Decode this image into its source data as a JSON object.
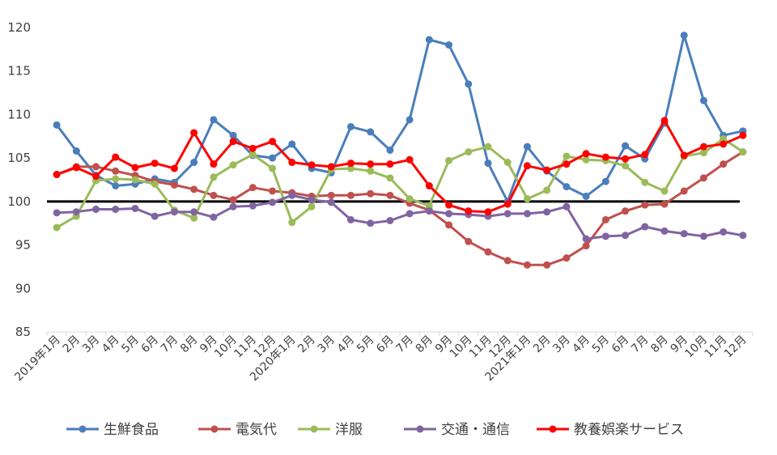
{
  "chart_data": {
    "type": "line",
    "categories": [
      "2019年1月",
      "2月",
      "3月",
      "4月",
      "5月",
      "6月",
      "7月",
      "8月",
      "9月",
      "10月",
      "11月",
      "12月",
      "2020年1月",
      "2月",
      "3月",
      "4月",
      "5月",
      "6月",
      "7月",
      "8月",
      "9月",
      "10月",
      "11月",
      "12月",
      "2021年1月",
      "2月",
      "3月",
      "4月",
      "5月",
      "6月",
      "7月",
      "8月",
      "9月",
      "10月",
      "11月",
      "12月"
    ],
    "ylim": [
      85,
      120
    ],
    "yticks": [
      85,
      90,
      95,
      100,
      105,
      110,
      115,
      120
    ],
    "grid": false,
    "legend": "bottom",
    "reference_line": {
      "y": 100,
      "color": "#000000"
    },
    "series": [
      {
        "name": "生鮮食品",
        "color": "#4a7ebb",
        "values": [
          108.8,
          105.8,
          103.0,
          101.8,
          102.0,
          102.6,
          102.2,
          104.5,
          109.4,
          107.6,
          105.3,
          105.0,
          106.6,
          103.8,
          103.3,
          108.6,
          108.0,
          105.9,
          109.4,
          118.6,
          118.0,
          113.5,
          104.4,
          100.0,
          106.3,
          103.5,
          101.7,
          100.6,
          102.3,
          106.4,
          104.9,
          109.0,
          119.1,
          111.6,
          107.6,
          108.1
        ]
      },
      {
        "name": "電気代",
        "color": "#c0504d",
        "values": [
          103.1,
          104.0,
          104.0,
          103.5,
          103.0,
          102.3,
          101.9,
          101.4,
          100.7,
          100.2,
          101.6,
          101.2,
          101.0,
          100.6,
          100.7,
          100.7,
          100.9,
          100.7,
          99.8,
          99.0,
          97.3,
          95.4,
          94.2,
          93.2,
          92.7,
          92.7,
          93.5,
          94.9,
          97.9,
          98.9,
          99.6,
          99.7,
          101.2,
          102.7,
          104.3,
          105.7
        ]
      },
      {
        "name": "洋服",
        "color": "#9bbb59",
        "values": [
          97.0,
          98.3,
          102.4,
          102.6,
          102.5,
          102.0,
          99.0,
          98.1,
          102.8,
          104.2,
          105.4,
          103.8,
          97.6,
          99.4,
          103.7,
          103.8,
          103.5,
          102.7,
          100.3,
          99.5,
          104.7,
          105.7,
          106.3,
          104.5,
          100.3,
          101.3,
          105.2,
          104.8,
          104.7,
          104.1,
          102.2,
          101.2,
          105.2,
          105.6,
          107.2,
          105.7
        ]
      },
      {
        "name": "交通・通信",
        "color": "#8064a2",
        "values": [
          98.7,
          98.8,
          99.1,
          99.1,
          99.2,
          98.3,
          98.8,
          98.8,
          98.2,
          99.4,
          99.5,
          99.9,
          100.7,
          100.2,
          99.9,
          97.9,
          97.5,
          97.8,
          98.6,
          98.9,
          98.6,
          98.5,
          98.3,
          98.6,
          98.6,
          98.8,
          99.4,
          95.7,
          96.0,
          96.1,
          97.1,
          96.6,
          96.3,
          96.0,
          96.5,
          96.1
        ]
      },
      {
        "name": "教養娯楽サービス",
        "color": "#ff0000",
        "values": [
          103.1,
          103.9,
          102.9,
          105.1,
          103.9,
          104.4,
          103.8,
          107.9,
          104.3,
          106.9,
          106.1,
          106.9,
          104.5,
          104.2,
          104.0,
          104.4,
          104.3,
          104.3,
          104.8,
          101.8,
          99.6,
          98.9,
          98.8,
          99.7,
          104.1,
          103.6,
          104.3,
          105.5,
          105.1,
          104.9,
          105.4,
          109.3,
          105.3,
          106.3,
          106.6,
          107.6
        ]
      }
    ]
  }
}
